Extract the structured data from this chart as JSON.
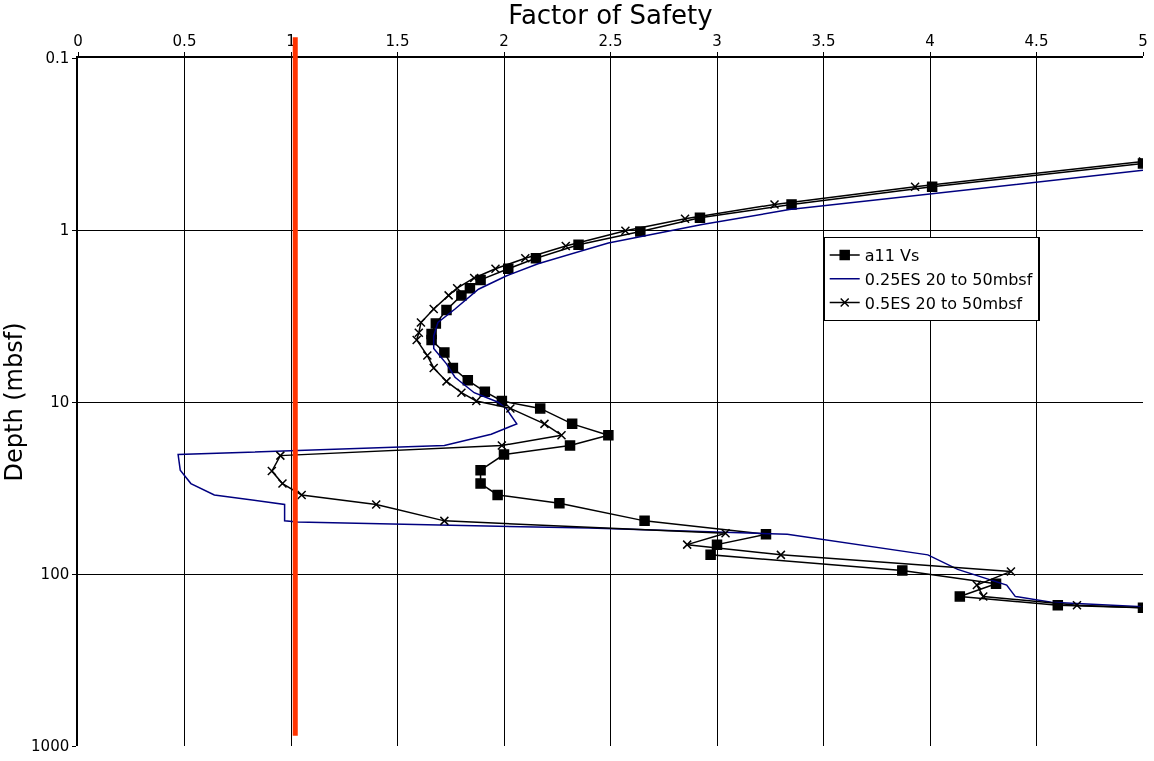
{
  "chart_data": {
    "type": "line",
    "xlabel": "Factor of Safety",
    "ylabel": "Depth (mbsf)",
    "xlim": [
      0,
      5
    ],
    "xticks": [
      0,
      0.5,
      1,
      1.5,
      2,
      2.5,
      3,
      3.5,
      4,
      4.5,
      5
    ],
    "ylim": [
      1000,
      0.1
    ],
    "yticks": [
      0.1,
      1,
      10,
      100,
      1000
    ],
    "log": "y",
    "grid": true,
    "legend": "right",
    "ref_lines": [
      {
        "axis": "x",
        "value": 1.02,
        "color": "#ff3300"
      }
    ],
    "series": [
      {
        "name": "a11 Vs",
        "color": "#000000",
        "marker": "square",
        "x": [
          5.0,
          4.01,
          3.35,
          2.92,
          2.64,
          2.35,
          2.15,
          2.02,
          1.89,
          1.84,
          1.8,
          1.73,
          1.68,
          1.66,
          1.66,
          1.72,
          1.76,
          1.83,
          1.91,
          1.99,
          2.17,
          2.32,
          2.49,
          2.31,
          2.0,
          1.89,
          1.89,
          1.97,
          2.26,
          2.66,
          3.23,
          3.0,
          2.97,
          3.87,
          4.31,
          4.14,
          4.6,
          5.0
        ],
        "values": [
          0.41,
          0.56,
          0.71,
          0.85,
          1.02,
          1.22,
          1.46,
          1.68,
          1.95,
          2.18,
          2.4,
          2.92,
          3.5,
          4.02,
          4.36,
          5.15,
          6.34,
          7.48,
          8.71,
          9.86,
          10.9,
          13.4,
          15.6,
          17.9,
          20.2,
          24.9,
          29.8,
          34.7,
          38.8,
          49.1,
          58.8,
          67.5,
          77.4,
          95.3,
          114,
          135,
          152,
          157
        ]
      },
      {
        "name": "0.25ES 20 to 50mbsf",
        "color": "#000080",
        "marker": "none",
        "x": [
          5.0,
          3.34,
          2.93,
          2.49,
          2.16,
          2.01,
          1.88,
          1.77,
          1.69,
          1.67,
          1.67,
          1.73,
          1.77,
          1.86,
          1.97,
          2.01,
          2.06,
          1.94,
          1.72,
          0.47,
          0.48,
          0.53,
          0.64,
          0.97,
          0.97,
          1.03,
          2.4,
          3.33,
          3.99,
          4.13,
          4.36,
          4.4,
          4.57,
          5.0
        ],
        "values": [
          0.45,
          0.76,
          0.93,
          1.19,
          1.57,
          1.85,
          2.21,
          2.88,
          3.45,
          4.13,
          4.88,
          6.0,
          7.18,
          8.83,
          10.0,
          10.9,
          13.4,
          15.4,
          17.9,
          20.2,
          24.9,
          29.8,
          34.7,
          39.4,
          49.1,
          49.8,
          54.1,
          58.8,
          77.4,
          94.0,
          116,
          135,
          146,
          155
        ]
      },
      {
        "name": "0.5ES 20 to 50mbsf",
        "color": "#000000",
        "marker": "cross",
        "x": [
          5.0,
          3.93,
          3.27,
          2.85,
          2.57,
          2.29,
          2.1,
          1.96,
          1.86,
          1.78,
          1.74,
          1.67,
          1.61,
          1.6,
          1.59,
          1.64,
          1.67,
          1.73,
          1.8,
          1.87,
          2.03,
          2.19,
          2.27,
          1.99,
          0.95,
          0.91,
          0.96,
          1.05,
          1.4,
          1.72,
          3.04,
          2.86,
          3.3,
          4.38,
          4.22,
          4.25,
          4.69,
          5.0
        ],
        "values": [
          0.4,
          0.56,
          0.71,
          0.86,
          1.01,
          1.24,
          1.46,
          1.68,
          1.9,
          2.18,
          2.4,
          2.88,
          3.45,
          3.96,
          4.36,
          5.37,
          6.34,
          7.59,
          8.83,
          9.86,
          10.9,
          13.4,
          15.6,
          17.9,
          20.5,
          25.2,
          29.8,
          34.7,
          39.4,
          49.1,
          58.0,
          67.5,
          77.4,
          96.6,
          116,
          135,
          152,
          157
        ]
      }
    ]
  }
}
